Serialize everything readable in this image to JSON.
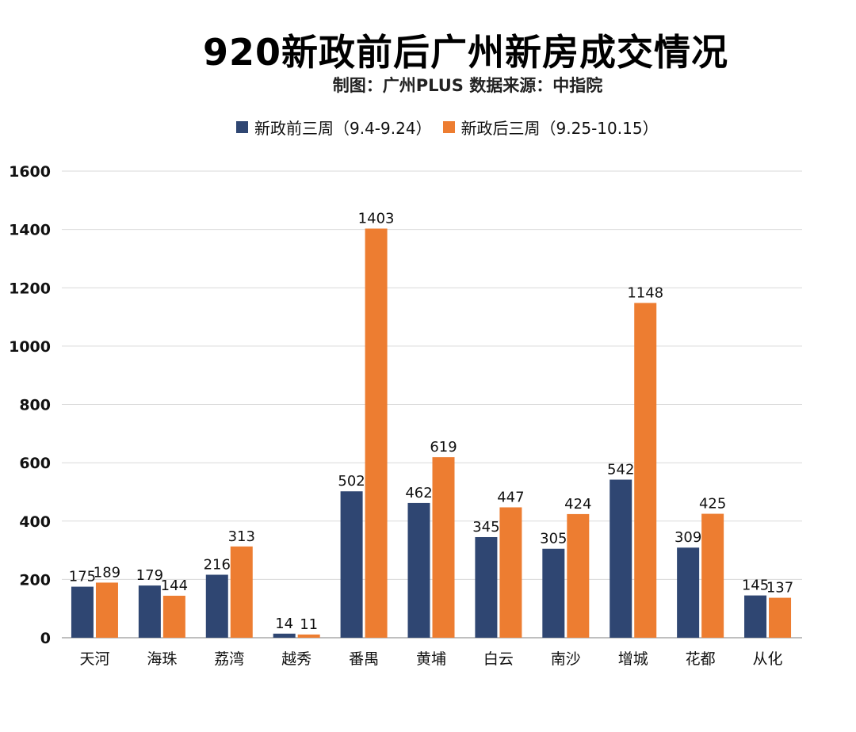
{
  "chart_data": {
    "type": "bar",
    "title": "920新政前后广州新房成交情况",
    "subtitle": "制图：广州PLUS  数据来源：中指院",
    "categories": [
      "天河",
      "海珠",
      "荔湾",
      "越秀",
      "番禺",
      "黄埔",
      "白云",
      "南沙",
      "增城",
      "花都",
      "从化"
    ],
    "series": [
      {
        "name": "新政前三周（9.4-9.24）",
        "color": "#2F4672",
        "values": [
          175,
          179,
          216,
          14,
          502,
          462,
          345,
          305,
          542,
          309,
          145
        ]
      },
      {
        "name": "新政后三周（9.25-10.15）",
        "color": "#ED7D31",
        "values": [
          189,
          144,
          313,
          11,
          1403,
          619,
          447,
          424,
          1148,
          425,
          137
        ]
      }
    ],
    "ylim": [
      0,
      1600
    ],
    "yticks": [
      0,
      200,
      400,
      600,
      800,
      1000,
      1200,
      1400,
      1600
    ],
    "grid": true,
    "legend_position": "top",
    "data_labels": true
  }
}
